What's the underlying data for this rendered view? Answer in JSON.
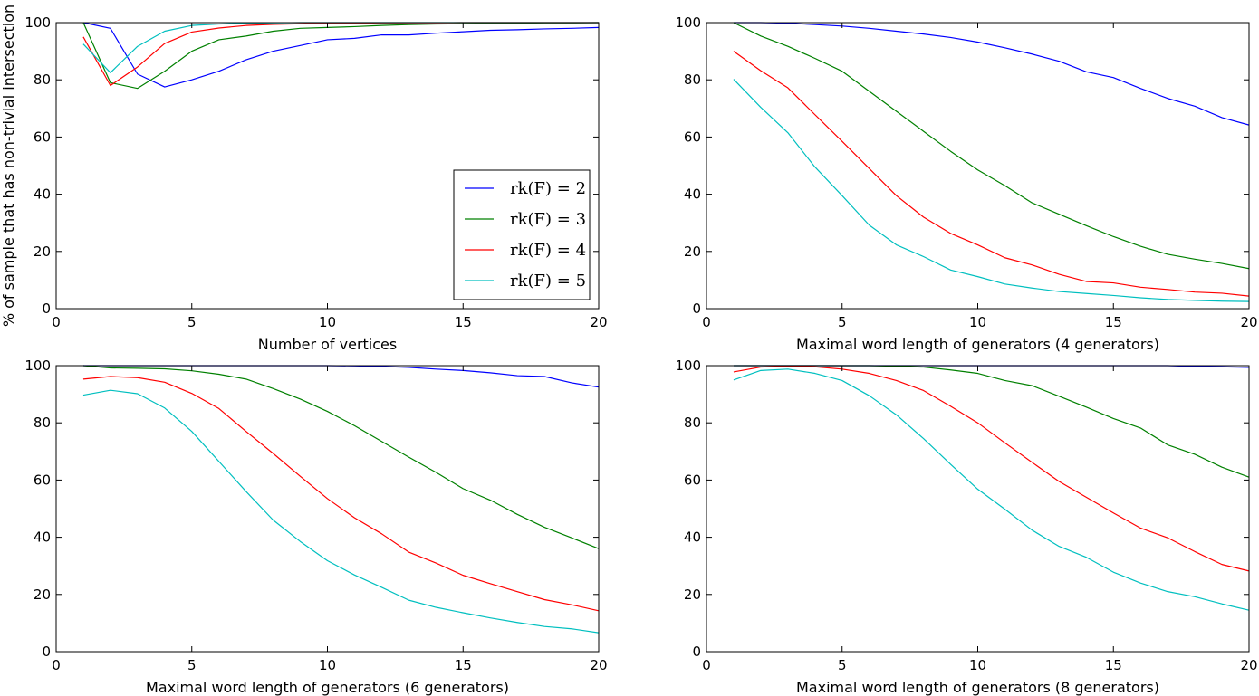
{
  "colors": {
    "rk2": "#0000ff",
    "rk3": "#008000",
    "rk4": "#ff0000",
    "rk5": "#00bfbf"
  },
  "ylabel": "% of sample that has non-trivial intersection",
  "legend": [
    "rk(F) = 2",
    "rk(F) = 3",
    "rk(F) = 4",
    "rk(F) = 5"
  ],
  "chart_data": [
    {
      "type": "line",
      "title": "",
      "xlabel": "Number of vertices",
      "ylabel": "% of sample that has non-trivial intersection",
      "xlim": [
        0,
        20
      ],
      "ylim": [
        0,
        100
      ],
      "xticks": [
        "0",
        "5",
        "10",
        "15",
        "20"
      ],
      "yticks": [
        "0",
        "20",
        "40",
        "60",
        "80",
        "100"
      ],
      "legend_position": "lower-right",
      "x": [
        1,
        2,
        3,
        4,
        5,
        6,
        7,
        8,
        9,
        10,
        11,
        12,
        13,
        14,
        15,
        16,
        17,
        18,
        19,
        20
      ],
      "series": [
        {
          "name": "rk(F) = 2",
          "color": "#0000ff",
          "values": [
            100,
            98,
            82,
            77.5,
            80,
            83,
            87,
            90,
            92,
            94,
            94.5,
            95.7,
            95.7,
            96.3,
            96.8,
            97.3,
            97.5,
            97.8,
            98,
            98.3
          ]
        },
        {
          "name": "rk(F) = 3",
          "color": "#008000",
          "values": [
            100,
            79,
            77,
            83,
            90,
            94,
            95.3,
            97,
            98,
            98.3,
            98.6,
            99,
            99.3,
            99.5,
            99.6,
            99.7,
            99.8,
            99.9,
            99.9,
            100
          ]
        },
        {
          "name": "rk(F) = 4",
          "color": "#ff0000",
          "values": [
            95,
            78,
            84.5,
            92.7,
            96.7,
            98.1,
            99,
            99.4,
            99.6,
            99.8,
            99.8,
            99.9,
            99.9,
            99.9,
            100,
            100,
            100,
            100,
            100,
            100
          ]
        },
        {
          "name": "rk(F) = 5",
          "color": "#00bfbf",
          "values": [
            92.5,
            82.5,
            91.7,
            97,
            99,
            99.5,
            99.8,
            99.9,
            100,
            100,
            100,
            100,
            100,
            100,
            100,
            100,
            100,
            100,
            100,
            100
          ]
        }
      ]
    },
    {
      "type": "line",
      "title": "",
      "xlabel": "Maximal word length of generators (4 generators)",
      "ylabel": "",
      "xlim": [
        0,
        20
      ],
      "ylim": [
        0,
        100
      ],
      "xticks": [
        "0",
        "5",
        "10",
        "15",
        "20"
      ],
      "yticks": [
        "0",
        "20",
        "40",
        "60",
        "80",
        "100"
      ],
      "x": [
        1,
        2,
        3,
        4,
        5,
        6,
        7,
        8,
        9,
        10,
        11,
        12,
        13,
        14,
        15,
        16,
        17,
        18,
        19,
        20
      ],
      "series": [
        {
          "name": "rk(F) = 2",
          "color": "#0000ff",
          "values": [
            100,
            100,
            99.8,
            99.3,
            98.8,
            98,
            97,
            96,
            94.8,
            93.2,
            91.2,
            89,
            86.5,
            82.8,
            80.8,
            77,
            73.5,
            70.8,
            66.8,
            64.2
          ]
        },
        {
          "name": "rk(F) = 3",
          "color": "#008000",
          "values": [
            100,
            95.3,
            91.7,
            87.5,
            83,
            76,
            69,
            62,
            55,
            48.5,
            43,
            37,
            33,
            29,
            25.2,
            21.8,
            19,
            17.3,
            15.8,
            14
          ]
        },
        {
          "name": "rk(F) = 4",
          "color": "#ff0000",
          "values": [
            90,
            83.2,
            77.2,
            67.8,
            58.5,
            49,
            39.5,
            32,
            26.3,
            22.3,
            17.8,
            15.3,
            12,
            9.5,
            9,
            7.5,
            6.7,
            5.8,
            5.4,
            4.4
          ]
        },
        {
          "name": "rk(F) = 5",
          "color": "#00bfbf",
          "values": [
            80.2,
            70.4,
            61.5,
            49.5,
            39.5,
            29.2,
            22.3,
            18.2,
            13.5,
            11.2,
            8.6,
            7.2,
            6,
            5.3,
            4.6,
            3.8,
            3.2,
            2.9,
            2.6,
            2.5
          ]
        }
      ]
    },
    {
      "type": "line",
      "title": "",
      "xlabel": "Maximal word length of generators (6 generators)",
      "ylabel": "",
      "xlim": [
        0,
        20
      ],
      "ylim": [
        0,
        100
      ],
      "xticks": [
        "0",
        "5",
        "10",
        "15",
        "20"
      ],
      "yticks": [
        "0",
        "20",
        "40",
        "60",
        "80",
        "100"
      ],
      "x": [
        1,
        2,
        3,
        4,
        5,
        6,
        7,
        8,
        9,
        10,
        11,
        12,
        13,
        14,
        15,
        16,
        17,
        18,
        19,
        20
      ],
      "series": [
        {
          "name": "rk(F) = 2",
          "color": "#0000ff",
          "values": [
            100,
            100,
            100,
            100,
            100,
            100,
            100,
            100,
            100,
            100,
            99.9,
            99.7,
            99.4,
            98.8,
            98.3,
            97.5,
            96.5,
            96.2,
            94,
            92.5
          ]
        },
        {
          "name": "rk(F) = 3",
          "color": "#008000",
          "values": [
            100,
            99.2,
            99.1,
            98.9,
            98.2,
            97,
            95.3,
            92,
            88.3,
            84,
            79,
            73.5,
            68,
            62.7,
            57,
            53,
            48,
            43.5,
            39.8,
            36
          ]
        },
        {
          "name": "rk(F) = 4",
          "color": "#ff0000",
          "values": [
            95.3,
            96.2,
            95.8,
            94.2,
            90.3,
            85,
            77,
            69.3,
            61.3,
            53.5,
            46.8,
            41.2,
            34.8,
            31,
            26.7,
            23.8,
            21,
            18.2,
            16.4,
            14.3
          ]
        },
        {
          "name": "rk(F) = 5",
          "color": "#00bfbf",
          "values": [
            89.7,
            91.4,
            90.2,
            85.2,
            77,
            66.5,
            56,
            46,
            38.5,
            31.8,
            26.8,
            22.5,
            18,
            15.5,
            13.6,
            11.8,
            10.2,
            8.8,
            8,
            6.6
          ]
        }
      ]
    },
    {
      "type": "line",
      "title": "",
      "xlabel": "Maximal word length of generators (8 generators)",
      "ylabel": "",
      "xlim": [
        0,
        20
      ],
      "ylim": [
        0,
        100
      ],
      "xticks": [
        "0",
        "5",
        "10",
        "15",
        "20"
      ],
      "yticks": [
        "0",
        "20",
        "40",
        "60",
        "80",
        "100"
      ],
      "x": [
        1,
        2,
        3,
        4,
        5,
        6,
        7,
        8,
        9,
        10,
        11,
        12,
        13,
        14,
        15,
        16,
        17,
        18,
        19,
        20
      ],
      "series": [
        {
          "name": "rk(F) = 2",
          "color": "#0000ff",
          "values": [
            100,
            100,
            100,
            100,
            100,
            100,
            100,
            100,
            100,
            100,
            100,
            100,
            100,
            100,
            100,
            100,
            100,
            99.7,
            99.6,
            99.4
          ]
        },
        {
          "name": "rk(F) = 3",
          "color": "#008000",
          "values": [
            100,
            100,
            100,
            100,
            100,
            100,
            99.8,
            99.5,
            98.5,
            97.3,
            94.8,
            93,
            89.3,
            85.5,
            81.5,
            78.2,
            72.3,
            69,
            64.5,
            61
          ]
        },
        {
          "name": "rk(F) = 4",
          "color": "#ff0000",
          "values": [
            97.8,
            99.5,
            99.8,
            99.6,
            98.8,
            97.3,
            94.8,
            91.3,
            85.8,
            80,
            73,
            66.2,
            59.5,
            54,
            48.5,
            43.2,
            39.8,
            35,
            30.5,
            28.2
          ]
        },
        {
          "name": "rk(F) = 5",
          "color": "#00bfbf",
          "values": [
            95,
            98.3,
            98.8,
            97.3,
            94.8,
            89.5,
            82.8,
            74.5,
            65.5,
            56.8,
            49.8,
            42.5,
            36.8,
            33,
            27.8,
            24,
            21,
            19.2,
            16.7,
            14.5
          ]
        }
      ]
    }
  ]
}
